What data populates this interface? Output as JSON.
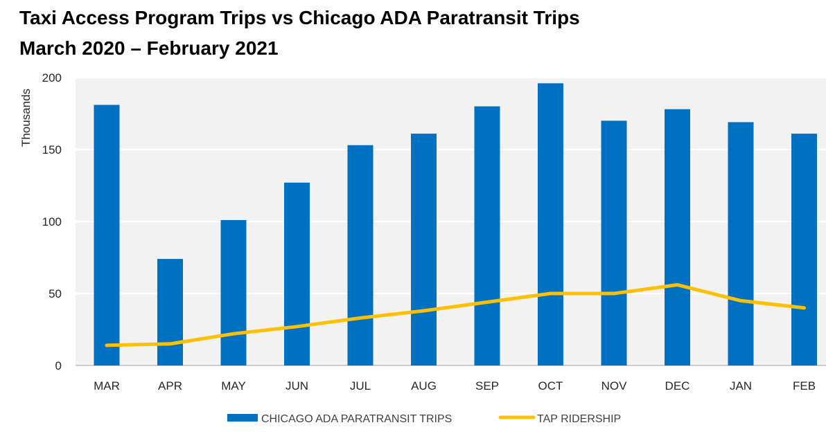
{
  "title": {
    "line1": "Taxi Access Program Trips vs Chicago ADA Paratransit Trips",
    "line2": "March 2020 – February 2021"
  },
  "chart_data": {
    "type": "bar",
    "categories": [
      "MAR",
      "APR",
      "MAY",
      "JUN",
      "JUL",
      "AUG",
      "SEP",
      "OCT",
      "NOV",
      "DEC",
      "JAN",
      "FEB"
    ],
    "series": [
      {
        "name": "CHICAGO ADA PARATRANSIT TRIPS",
        "type": "bar",
        "color": "#0070C0",
        "values": [
          181,
          74,
          101,
          127,
          153,
          161,
          180,
          196,
          170,
          178,
          169,
          161
        ]
      },
      {
        "name": "TAP RIDERSHIP",
        "type": "line",
        "color": "#FFC000",
        "values": [
          14,
          15,
          22,
          27,
          33,
          38,
          44,
          50,
          50,
          56,
          45,
          40
        ]
      }
    ],
    "ylabel": "Thousands",
    "ylim": [
      0,
      200
    ],
    "yticks": [
      "0",
      "50",
      "100",
      "150",
      "200"
    ],
    "grid": true,
    "legend": "bottom"
  }
}
